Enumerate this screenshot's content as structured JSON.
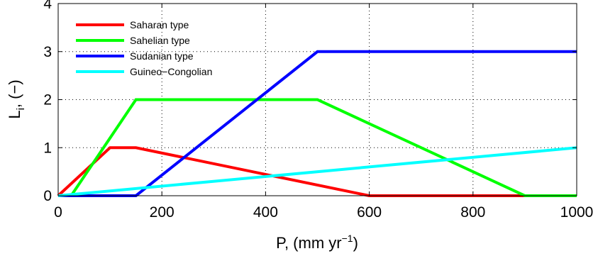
{
  "chart_data": {
    "type": "line",
    "xlabel": "P, (mm yr",
    "xlabel_sup": "−1",
    "xlabel_close": ")",
    "ylabel": "L",
    "ylabel_sub": "i",
    "ylabel_rest": ", (−)",
    "xlim": [
      0,
      1000
    ],
    "ylim": [
      0,
      4
    ],
    "xticks": [
      0,
      200,
      400,
      600,
      800,
      1000
    ],
    "yticks": [
      0,
      1,
      2,
      3,
      4
    ],
    "grid": true,
    "legend_position": "top-left",
    "series": [
      {
        "name": "Saharan type",
        "color": "#ff0000",
        "x": [
          0,
          100,
          150,
          600,
          1000
        ],
        "y": [
          0,
          1,
          1,
          0,
          0
        ]
      },
      {
        "name": "Sahelian type",
        "color": "#00ff00",
        "x": [
          25,
          150,
          500,
          900,
          1000
        ],
        "y": [
          0,
          2,
          2,
          0,
          0
        ]
      },
      {
        "name": "Sudanian type",
        "color": "#0000ff",
        "x": [
          0,
          150,
          500,
          1000
        ],
        "y": [
          0,
          0,
          3,
          3
        ]
      },
      {
        "name": "Guineo−Congolian",
        "color": "#00ffff",
        "x": [
          0,
          1000
        ],
        "y": [
          0,
          1
        ]
      }
    ]
  }
}
